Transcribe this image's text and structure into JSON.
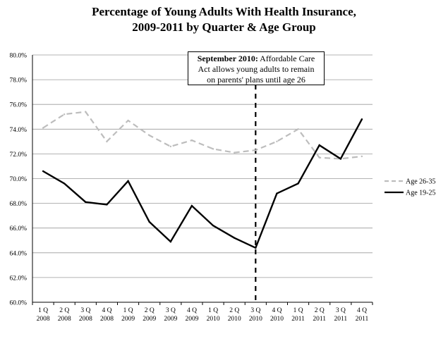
{
  "chart_data": {
    "type": "line",
    "title": "Percentage of Young Adults With Health Insurance,",
    "subtitle": "2009-2011 by Quarter & Age Group",
    "categories": [
      [
        "1 Q",
        "2008"
      ],
      [
        "2 Q",
        "2008"
      ],
      [
        "3 Q",
        "2008"
      ],
      [
        "4 Q",
        "2008"
      ],
      [
        "1 Q",
        "2009"
      ],
      [
        "2 Q",
        "2009"
      ],
      [
        "3 Q",
        "2009"
      ],
      [
        "4 Q",
        "2009"
      ],
      [
        "1 Q",
        "2010"
      ],
      [
        "2 Q",
        "2010"
      ],
      [
        "3 Q",
        "2010"
      ],
      [
        "4 Q",
        "2010"
      ],
      [
        "1 Q",
        "2011"
      ],
      [
        "2 Q",
        "2011"
      ],
      [
        "3 Q",
        "2011"
      ],
      [
        "4 Q",
        "2011"
      ]
    ],
    "series": [
      {
        "name": "Age 26-35",
        "color": "#bdbdbd",
        "style": "dashed",
        "values": [
          74.1,
          75.2,
          75.4,
          73.0,
          74.7,
          73.5,
          72.6,
          73.1,
          72.4,
          72.1,
          72.3,
          73.0,
          74.0,
          71.7,
          71.6,
          71.8
        ]
      },
      {
        "name": "Age 19-25",
        "color": "#000000",
        "style": "solid",
        "values": [
          70.6,
          69.6,
          68.1,
          67.9,
          69.8,
          66.5,
          64.9,
          67.8,
          66.2,
          65.2,
          64.4,
          68.8,
          69.6,
          72.7,
          71.6,
          74.8
        ]
      }
    ],
    "ylim": [
      60.0,
      80.0
    ],
    "yticks": [
      "60.0%",
      "62.0%",
      "64.0%",
      "66.0%",
      "68.0%",
      "70.0%",
      "72.0%",
      "74.0%",
      "76.0%",
      "78.0%",
      "80.0%"
    ],
    "grid": true,
    "legend_position": "right",
    "annotation": {
      "bold": "September 2010:",
      "text_1": " Affordable Care",
      "text_2": "Act allows young adults to remain",
      "text_3": "on parents' plans until age 26",
      "category_index": 10
    }
  }
}
